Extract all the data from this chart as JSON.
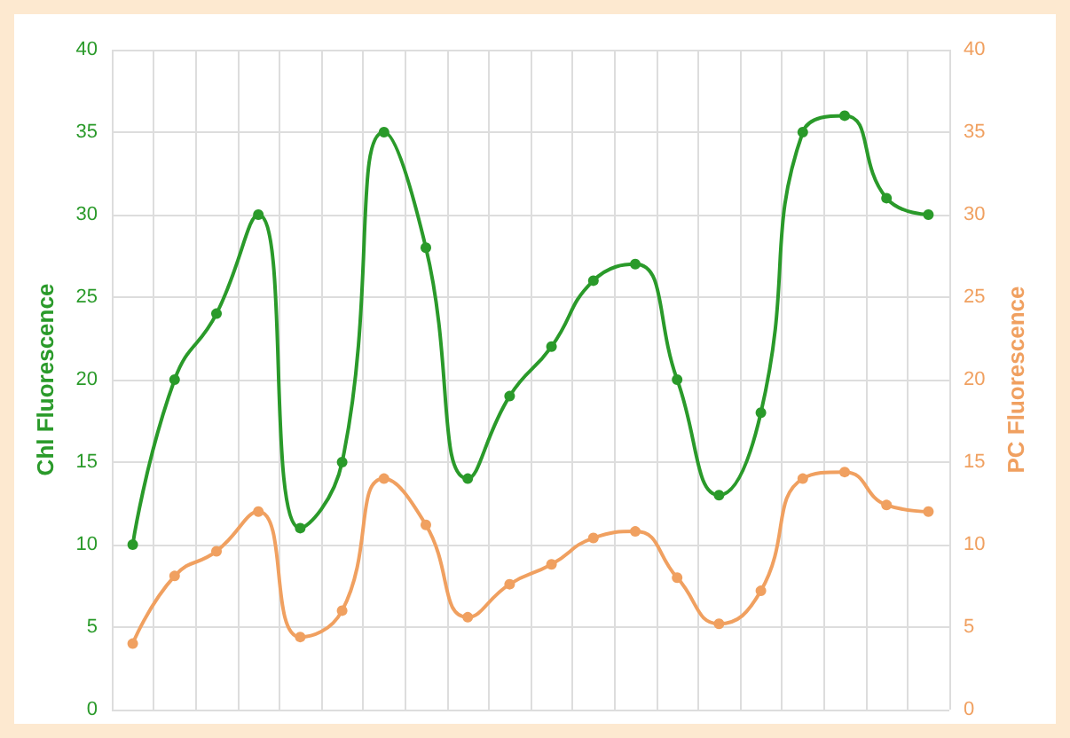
{
  "chart_data": {
    "type": "line",
    "ylabel": "Chl Fluorescence",
    "y2label": "PC Fluorescence",
    "categories": [
      null,
      null,
      null,
      null,
      null,
      null,
      null,
      null,
      null,
      null,
      null,
      null,
      null,
      null,
      null,
      null,
      null,
      null,
      null,
      null
    ],
    "series": [
      {
        "color": "#2a9a2a",
        "values": [
          10,
          20,
          24,
          30,
          11,
          15,
          35,
          28,
          14,
          19,
          22,
          26,
          27,
          20,
          13,
          18,
          35,
          36,
          31,
          30
        ]
      },
      {
        "color": "#f0a060",
        "axis": "y2",
        "values": [
          4,
          8.1,
          9.6,
          12,
          4.4,
          6,
          14,
          11.2,
          5.6,
          7.6,
          8.8,
          10.4,
          10.8,
          8,
          5.2,
          7.2,
          14,
          14.4,
          12.4,
          12
        ]
      }
    ],
    "ylim": [
      0,
      40
    ],
    "yticks": [
      0,
      5,
      10,
      15,
      20,
      25,
      30,
      35,
      40
    ],
    "y2lim": [
      0,
      40
    ],
    "y2ticks": [
      0,
      5,
      10,
      15,
      20,
      25,
      30,
      35,
      40
    ],
    "grid": true,
    "marker": "circle",
    "line_style": "solid"
  }
}
